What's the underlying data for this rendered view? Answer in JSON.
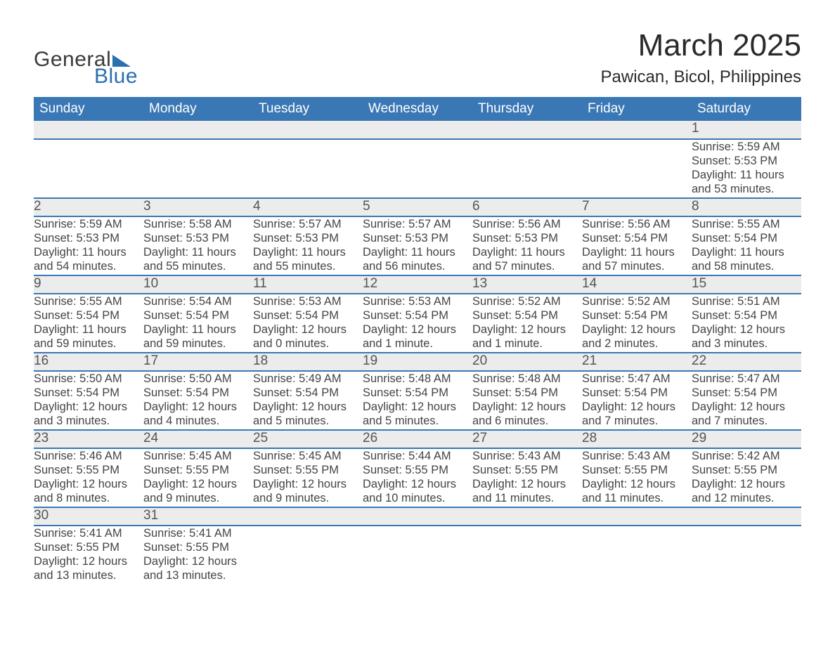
{
  "brand": {
    "general": "General",
    "blue": "Blue",
    "accent_color": "#2a6fb0"
  },
  "title": "March 2025",
  "location": "Pawican, Bicol, Philippines",
  "colors": {
    "header_bg": "#3a78b5",
    "header_text": "#ffffff",
    "daynum_bg": "#ececec",
    "border": "#3a78b5",
    "text": "#444444",
    "bg": "#ffffff"
  },
  "typography": {
    "title_fontsize": 44,
    "location_fontsize": 24,
    "header_fontsize": 19,
    "daynum_fontsize": 19,
    "cell_fontsize": 16.5,
    "font_family": "Arial"
  },
  "layout": {
    "columns": 7,
    "rows": 6
  },
  "dow": [
    "Sunday",
    "Monday",
    "Tuesday",
    "Wednesday",
    "Thursday",
    "Friday",
    "Saturday"
  ],
  "weeks": [
    [
      null,
      null,
      null,
      null,
      null,
      null,
      {
        "n": "1",
        "sr": "Sunrise: 5:59 AM",
        "ss": "Sunset: 5:53 PM",
        "d1": "Daylight: 11 hours",
        "d2": "and 53 minutes."
      }
    ],
    [
      {
        "n": "2",
        "sr": "Sunrise: 5:59 AM",
        "ss": "Sunset: 5:53 PM",
        "d1": "Daylight: 11 hours",
        "d2": "and 54 minutes."
      },
      {
        "n": "3",
        "sr": "Sunrise: 5:58 AM",
        "ss": "Sunset: 5:53 PM",
        "d1": "Daylight: 11 hours",
        "d2": "and 55 minutes."
      },
      {
        "n": "4",
        "sr": "Sunrise: 5:57 AM",
        "ss": "Sunset: 5:53 PM",
        "d1": "Daylight: 11 hours",
        "d2": "and 55 minutes."
      },
      {
        "n": "5",
        "sr": "Sunrise: 5:57 AM",
        "ss": "Sunset: 5:53 PM",
        "d1": "Daylight: 11 hours",
        "d2": "and 56 minutes."
      },
      {
        "n": "6",
        "sr": "Sunrise: 5:56 AM",
        "ss": "Sunset: 5:53 PM",
        "d1": "Daylight: 11 hours",
        "d2": "and 57 minutes."
      },
      {
        "n": "7",
        "sr": "Sunrise: 5:56 AM",
        "ss": "Sunset: 5:54 PM",
        "d1": "Daylight: 11 hours",
        "d2": "and 57 minutes."
      },
      {
        "n": "8",
        "sr": "Sunrise: 5:55 AM",
        "ss": "Sunset: 5:54 PM",
        "d1": "Daylight: 11 hours",
        "d2": "and 58 minutes."
      }
    ],
    [
      {
        "n": "9",
        "sr": "Sunrise: 5:55 AM",
        "ss": "Sunset: 5:54 PM",
        "d1": "Daylight: 11 hours",
        "d2": "and 59 minutes."
      },
      {
        "n": "10",
        "sr": "Sunrise: 5:54 AM",
        "ss": "Sunset: 5:54 PM",
        "d1": "Daylight: 11 hours",
        "d2": "and 59 minutes."
      },
      {
        "n": "11",
        "sr": "Sunrise: 5:53 AM",
        "ss": "Sunset: 5:54 PM",
        "d1": "Daylight: 12 hours",
        "d2": "and 0 minutes."
      },
      {
        "n": "12",
        "sr": "Sunrise: 5:53 AM",
        "ss": "Sunset: 5:54 PM",
        "d1": "Daylight: 12 hours",
        "d2": "and 1 minute."
      },
      {
        "n": "13",
        "sr": "Sunrise: 5:52 AM",
        "ss": "Sunset: 5:54 PM",
        "d1": "Daylight: 12 hours",
        "d2": "and 1 minute."
      },
      {
        "n": "14",
        "sr": "Sunrise: 5:52 AM",
        "ss": "Sunset: 5:54 PM",
        "d1": "Daylight: 12 hours",
        "d2": "and 2 minutes."
      },
      {
        "n": "15",
        "sr": "Sunrise: 5:51 AM",
        "ss": "Sunset: 5:54 PM",
        "d1": "Daylight: 12 hours",
        "d2": "and 3 minutes."
      }
    ],
    [
      {
        "n": "16",
        "sr": "Sunrise: 5:50 AM",
        "ss": "Sunset: 5:54 PM",
        "d1": "Daylight: 12 hours",
        "d2": "and 3 minutes."
      },
      {
        "n": "17",
        "sr": "Sunrise: 5:50 AM",
        "ss": "Sunset: 5:54 PM",
        "d1": "Daylight: 12 hours",
        "d2": "and 4 minutes."
      },
      {
        "n": "18",
        "sr": "Sunrise: 5:49 AM",
        "ss": "Sunset: 5:54 PM",
        "d1": "Daylight: 12 hours",
        "d2": "and 5 minutes."
      },
      {
        "n": "19",
        "sr": "Sunrise: 5:48 AM",
        "ss": "Sunset: 5:54 PM",
        "d1": "Daylight: 12 hours",
        "d2": "and 5 minutes."
      },
      {
        "n": "20",
        "sr": "Sunrise: 5:48 AM",
        "ss": "Sunset: 5:54 PM",
        "d1": "Daylight: 12 hours",
        "d2": "and 6 minutes."
      },
      {
        "n": "21",
        "sr": "Sunrise: 5:47 AM",
        "ss": "Sunset: 5:54 PM",
        "d1": "Daylight: 12 hours",
        "d2": "and 7 minutes."
      },
      {
        "n": "22",
        "sr": "Sunrise: 5:47 AM",
        "ss": "Sunset: 5:54 PM",
        "d1": "Daylight: 12 hours",
        "d2": "and 7 minutes."
      }
    ],
    [
      {
        "n": "23",
        "sr": "Sunrise: 5:46 AM",
        "ss": "Sunset: 5:55 PM",
        "d1": "Daylight: 12 hours",
        "d2": "and 8 minutes."
      },
      {
        "n": "24",
        "sr": "Sunrise: 5:45 AM",
        "ss": "Sunset: 5:55 PM",
        "d1": "Daylight: 12 hours",
        "d2": "and 9 minutes."
      },
      {
        "n": "25",
        "sr": "Sunrise: 5:45 AM",
        "ss": "Sunset: 5:55 PM",
        "d1": "Daylight: 12 hours",
        "d2": "and 9 minutes."
      },
      {
        "n": "26",
        "sr": "Sunrise: 5:44 AM",
        "ss": "Sunset: 5:55 PM",
        "d1": "Daylight: 12 hours",
        "d2": "and 10 minutes."
      },
      {
        "n": "27",
        "sr": "Sunrise: 5:43 AM",
        "ss": "Sunset: 5:55 PM",
        "d1": "Daylight: 12 hours",
        "d2": "and 11 minutes."
      },
      {
        "n": "28",
        "sr": "Sunrise: 5:43 AM",
        "ss": "Sunset: 5:55 PM",
        "d1": "Daylight: 12 hours",
        "d2": "and 11 minutes."
      },
      {
        "n": "29",
        "sr": "Sunrise: 5:42 AM",
        "ss": "Sunset: 5:55 PM",
        "d1": "Daylight: 12 hours",
        "d2": "and 12 minutes."
      }
    ],
    [
      {
        "n": "30",
        "sr": "Sunrise: 5:41 AM",
        "ss": "Sunset: 5:55 PM",
        "d1": "Daylight: 12 hours",
        "d2": "and 13 minutes."
      },
      {
        "n": "31",
        "sr": "Sunrise: 5:41 AM",
        "ss": "Sunset: 5:55 PM",
        "d1": "Daylight: 12 hours",
        "d2": "and 13 minutes."
      },
      null,
      null,
      null,
      null,
      null
    ]
  ]
}
